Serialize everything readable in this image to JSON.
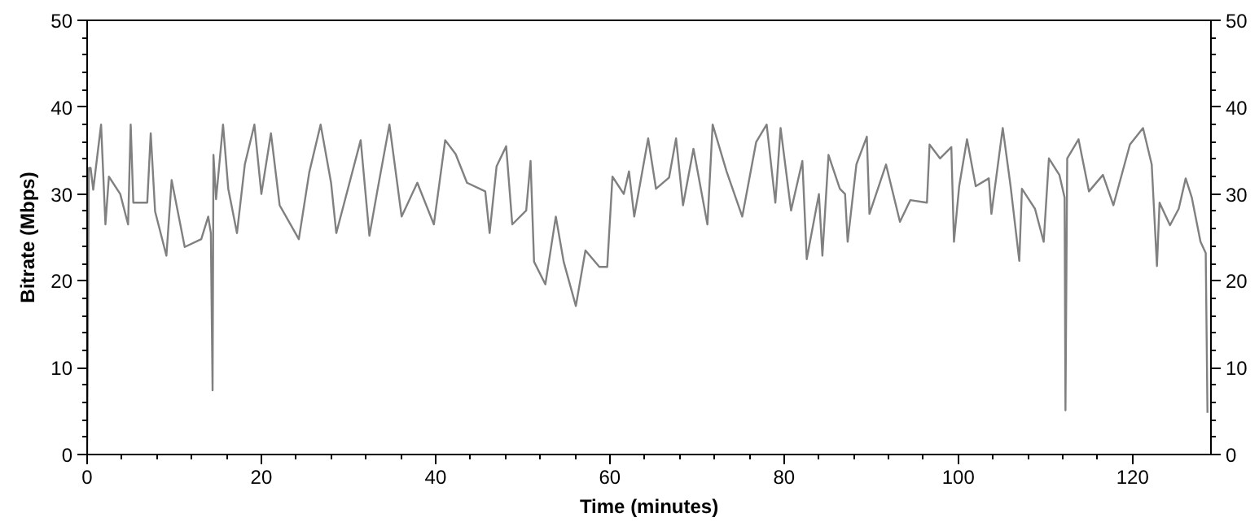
{
  "chart_data": {
    "type": "line",
    "xlabel": "Time (minutes)",
    "ylabel": "Bitrate (Mbps)",
    "xlim": [
      0,
      129
    ],
    "xticks": [
      0,
      20,
      40,
      60,
      80,
      100,
      120
    ],
    "ylim": [
      0,
      50
    ],
    "yticks": [
      0,
      10,
      20,
      30,
      40,
      50
    ],
    "y2lim": [
      0,
      50
    ],
    "y2ticks": [
      0,
      10,
      20,
      30,
      40,
      50
    ],
    "grid": false,
    "series": [
      {
        "color": "#808080",
        "x": [
          0,
          0.2,
          0.4,
          0.7,
          1.6,
          2.1,
          2.5,
          3.8,
          4.7,
          5.0,
          5.3,
          6.9,
          7.3,
          7.8,
          9.1,
          9.7,
          11.2,
          13.1,
          13.9,
          14.2,
          14.4,
          14.5,
          14.8,
          15.6,
          16.2,
          17.2,
          18.1,
          19.2,
          20.0,
          21.1,
          22.1,
          24.3,
          25.5,
          26.8,
          28.0,
          28.6,
          31.4,
          32.4,
          33.3,
          34.7,
          36.1,
          37.9,
          39.8,
          41.1,
          42.3,
          43.6,
          45.7,
          46.2,
          47.0,
          48.1,
          48.8,
          50.4,
          50.9,
          51.3,
          52.6,
          53.8,
          54.7,
          56.1,
          57.2,
          58.8,
          59.7,
          60.3,
          61.6,
          62.2,
          62.8,
          64.4,
          65.3,
          66.8,
          67.6,
          68.4,
          69.6,
          71.2,
          71.8,
          73.4,
          75.2,
          76.8,
          78.0,
          79.0,
          79.6,
          80.8,
          82.1,
          82.6,
          84.0,
          84.4,
          85.1,
          86.4,
          87.0,
          87.3,
          88.3,
          89.5,
          89.8,
          91.7,
          93.3,
          94.5,
          96.4,
          96.7,
          97.9,
          99.2,
          99.5,
          100.1,
          101.0,
          102.0,
          103.5,
          103.8,
          105.1,
          106.0,
          107.0,
          107.3,
          108.8,
          109.8,
          110.4,
          111.6,
          112.2,
          112.3,
          112.5,
          113.8,
          115.0,
          116.6,
          117.8,
          119.7,
          121.2,
          122.2,
          122.8,
          123.1,
          124.3,
          125.3,
          126.1,
          126.8,
          127.8,
          128.4,
          128.6
        ],
        "values": [
          0,
          33,
          33,
          30.5,
          38,
          26.5,
          32,
          30,
          26.5,
          38,
          29,
          29,
          37,
          28,
          22.9,
          31.6,
          23.9,
          24.8,
          27.4,
          25.5,
          7.4,
          34.5,
          29.4,
          38,
          30.6,
          25.5,
          33.4,
          38,
          30,
          37,
          28.7,
          24.8,
          32.5,
          38,
          31.3,
          25.5,
          36.2,
          25.2,
          30.3,
          38,
          27.4,
          31.3,
          26.5,
          36.2,
          34.6,
          31.3,
          30.3,
          25.5,
          33.2,
          35.5,
          26.5,
          28.1,
          33.8,
          22.2,
          19.6,
          27.4,
          22.2,
          17.1,
          23.5,
          21.6,
          21.6,
          32,
          30,
          32.6,
          27.4,
          36.4,
          30.6,
          31.9,
          36.4,
          28.7,
          35.2,
          26.5,
          38,
          32.6,
          27.4,
          36,
          38,
          29,
          37.6,
          28.1,
          33.8,
          22.5,
          30,
          22.9,
          34.5,
          30.6,
          30,
          24.5,
          33.4,
          36.6,
          27.7,
          33.4,
          26.8,
          29.3,
          29,
          35.7,
          34.1,
          35.4,
          24.5,
          30.9,
          36.3,
          30.9,
          31.8,
          27.7,
          37.6,
          30.9,
          22.3,
          30.6,
          28.3,
          24.5,
          34.1,
          32.2,
          29.6,
          5.1,
          34.1,
          36.3,
          30.3,
          32.2,
          28.7,
          35.7,
          37.6,
          33.4,
          21.7,
          29,
          26.4,
          28.3,
          31.8,
          29.6,
          24.5,
          23.2,
          4.8
        ]
      }
    ]
  }
}
